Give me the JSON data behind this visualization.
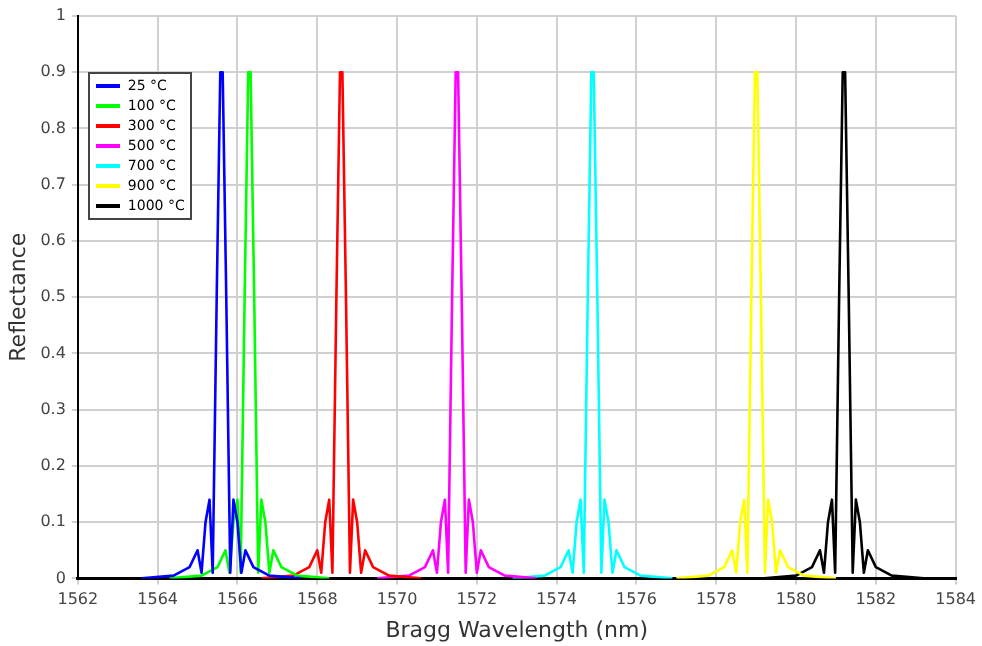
{
  "chart_data": {
    "type": "line",
    "xlabel": "Bragg Wavelength (nm)",
    "ylabel": "Reflectance",
    "xlim": [
      1562,
      1584
    ],
    "xticks": [
      1562,
      1564,
      1566,
      1568,
      1570,
      1572,
      1574,
      1576,
      1578,
      1580,
      1582,
      1584
    ],
    "ylim": [
      0,
      1
    ],
    "yticks": [
      0,
      0.1,
      0.2,
      0.3,
      0.4,
      0.5,
      0.6,
      0.7,
      0.8,
      0.9,
      1
    ],
    "grid": true,
    "legend": "top left",
    "marker": "none",
    "line_style": "solid",
    "series": [
      {
        "name": "25 °C",
        "color": "#0000ff",
        "x": [
          1563.6,
          1564.4,
          1564.8,
          1565.0,
          1565.1,
          1565.2,
          1565.3,
          1565.38,
          1565.48,
          1565.57,
          1565.63,
          1565.72,
          1565.82,
          1565.9,
          1566.0,
          1566.1,
          1566.2,
          1566.4,
          1566.8,
          1567.6
        ],
        "values": [
          0,
          0.005,
          0.02,
          0.05,
          0.01,
          0.1,
          0.14,
          0.01,
          0.5,
          0.9,
          0.9,
          0.5,
          0.01,
          0.14,
          0.1,
          0.01,
          0.05,
          0.02,
          0.005,
          0
        ]
      },
      {
        "name": "100 °C",
        "color": "#00ff00",
        "x": [
          1564.3,
          1565.1,
          1565.5,
          1565.7,
          1565.8,
          1565.9,
          1566.0,
          1566.08,
          1566.18,
          1566.27,
          1566.33,
          1566.42,
          1566.52,
          1566.6,
          1566.7,
          1566.8,
          1566.9,
          1567.1,
          1567.5,
          1568.3
        ],
        "values": [
          0,
          0.005,
          0.02,
          0.05,
          0.01,
          0.1,
          0.14,
          0.01,
          0.5,
          0.9,
          0.9,
          0.5,
          0.01,
          0.14,
          0.1,
          0.01,
          0.05,
          0.02,
          0.005,
          0
        ]
      },
      {
        "name": "300 °C",
        "color": "#ff0000",
        "x": [
          1566.6,
          1567.4,
          1567.8,
          1568.0,
          1568.1,
          1568.2,
          1568.3,
          1568.38,
          1568.48,
          1568.57,
          1568.63,
          1568.72,
          1568.82,
          1568.9,
          1569.0,
          1569.1,
          1569.2,
          1569.4,
          1569.8,
          1570.6
        ],
        "values": [
          0,
          0.005,
          0.02,
          0.05,
          0.01,
          0.1,
          0.14,
          0.01,
          0.5,
          0.9,
          0.9,
          0.5,
          0.01,
          0.14,
          0.1,
          0.01,
          0.05,
          0.02,
          0.005,
          0
        ]
      },
      {
        "name": "500 °C",
        "color": "#ff00ff",
        "x": [
          1569.5,
          1570.3,
          1570.7,
          1570.9,
          1571.0,
          1571.1,
          1571.2,
          1571.28,
          1571.38,
          1571.47,
          1571.53,
          1571.62,
          1571.72,
          1571.8,
          1571.9,
          1572.0,
          1572.1,
          1572.3,
          1572.7,
          1573.5
        ],
        "values": [
          0,
          0.005,
          0.02,
          0.05,
          0.01,
          0.1,
          0.14,
          0.01,
          0.5,
          0.9,
          0.9,
          0.5,
          0.01,
          0.14,
          0.1,
          0.01,
          0.05,
          0.02,
          0.005,
          0
        ]
      },
      {
        "name": "700 °C",
        "color": "#00ffff",
        "x": [
          1572.9,
          1573.7,
          1574.1,
          1574.3,
          1574.4,
          1574.5,
          1574.6,
          1574.68,
          1574.78,
          1574.87,
          1574.93,
          1575.02,
          1575.12,
          1575.2,
          1575.3,
          1575.4,
          1575.5,
          1575.7,
          1576.1,
          1576.9
        ],
        "values": [
          0,
          0.005,
          0.02,
          0.05,
          0.01,
          0.1,
          0.14,
          0.01,
          0.5,
          0.9,
          0.9,
          0.5,
          0.01,
          0.14,
          0.1,
          0.01,
          0.05,
          0.02,
          0.005,
          0
        ]
      },
      {
        "name": "900 °C",
        "color": "#ffff00",
        "x": [
          1577.0,
          1577.8,
          1578.2,
          1578.4,
          1578.5,
          1578.6,
          1578.7,
          1578.78,
          1578.88,
          1578.97,
          1579.03,
          1579.12,
          1579.22,
          1579.3,
          1579.4,
          1579.5,
          1579.6,
          1579.8,
          1580.2,
          1581.0
        ],
        "values": [
          0,
          0.005,
          0.02,
          0.05,
          0.01,
          0.1,
          0.14,
          0.01,
          0.5,
          0.9,
          0.9,
          0.5,
          0.01,
          0.14,
          0.1,
          0.01,
          0.05,
          0.02,
          0.005,
          0
        ]
      },
      {
        "name": "1000 °C",
        "color": "#000000",
        "x": [
          1579.2,
          1580.0,
          1580.4,
          1580.6,
          1580.7,
          1580.8,
          1580.9,
          1580.98,
          1581.08,
          1581.17,
          1581.23,
          1581.32,
          1581.42,
          1581.5,
          1581.6,
          1581.7,
          1581.8,
          1582.0,
          1582.4,
          1583.2
        ],
        "values": [
          0,
          0.005,
          0.02,
          0.05,
          0.01,
          0.1,
          0.14,
          0.01,
          0.5,
          0.9,
          0.9,
          0.5,
          0.01,
          0.14,
          0.1,
          0.01,
          0.05,
          0.02,
          0.005,
          0
        ]
      }
    ]
  }
}
